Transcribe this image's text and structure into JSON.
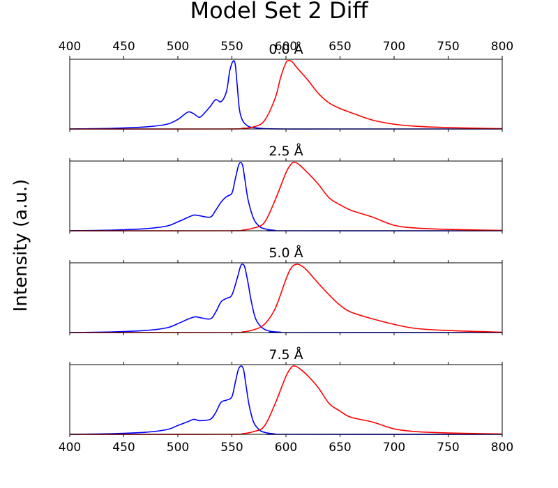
{
  "figure": {
    "title": "Model Set 2 Diff",
    "ylabel": "Intensity (a.u.)"
  },
  "chart_data": {
    "type": "line",
    "title": "Model Set 2 Diff",
    "ylabel": "Intensity (a.u.)",
    "xlabel": "",
    "xlim": [
      400,
      800
    ],
    "xticks": [
      "400",
      "450",
      "500",
      "550",
      "600",
      "650",
      "700",
      "750",
      "800"
    ],
    "colors": {
      "blue": "#0000ff",
      "red": "#ff0000"
    },
    "yticks_shown": false,
    "panels": [
      {
        "title": "0.0 Å",
        "series": [
          {
            "color": "#0000ff",
            "x": [
              400,
              440,
              470,
              490,
              500,
              505,
              510,
              515,
              520,
              525,
              530,
              535,
              540,
              545,
              548,
              551,
              553,
              555,
              557,
              560,
              565,
              570,
              580,
              600,
              650,
              800
            ],
            "y": [
              0.0,
              0.01,
              0.03,
              0.07,
              0.14,
              0.2,
              0.25,
              0.22,
              0.17,
              0.24,
              0.33,
              0.43,
              0.4,
              0.55,
              0.85,
              0.99,
              0.95,
              0.62,
              0.28,
              0.12,
              0.04,
              0.02,
              0.005,
              0.0,
              0.0,
              0.0
            ]
          },
          {
            "color": "#ff0000",
            "x": [
              400,
              540,
              560,
              570,
              580,
              590,
              595,
              600,
              603,
              606,
              610,
              620,
              630,
              640,
              650,
              660,
              680,
              700,
              720,
              750,
              800
            ],
            "y": [
              0.0,
              0.0,
              0.01,
              0.03,
              0.12,
              0.45,
              0.75,
              0.97,
              1.0,
              0.98,
              0.9,
              0.72,
              0.52,
              0.38,
              0.3,
              0.24,
              0.13,
              0.07,
              0.04,
              0.02,
              0.005
            ]
          }
        ]
      },
      {
        "title": "2.5 Å",
        "series": [
          {
            "color": "#0000ff",
            "x": [
              400,
              440,
              470,
              490,
              500,
              510,
              515,
              520,
              530,
              535,
              540,
              545,
              550,
              553,
              556,
              558,
              560,
              562,
              565,
              570,
              575,
              580,
              590,
              600,
              800
            ],
            "y": [
              0.0,
              0.01,
              0.03,
              0.07,
              0.13,
              0.2,
              0.23,
              0.22,
              0.2,
              0.3,
              0.42,
              0.5,
              0.55,
              0.75,
              0.95,
              1.0,
              0.95,
              0.75,
              0.45,
              0.18,
              0.07,
              0.03,
              0.005,
              0.0,
              0.0
            ]
          },
          {
            "color": "#ff0000",
            "x": [
              400,
              545,
              560,
              570,
              580,
              590,
              600,
              605,
              608,
              612,
              620,
              630,
              640,
              650,
              660,
              680,
              700,
              720,
              750,
              800
            ],
            "y": [
              0.0,
              0.0,
              0.01,
              0.04,
              0.12,
              0.45,
              0.85,
              0.98,
              1.0,
              0.97,
              0.85,
              0.68,
              0.48,
              0.38,
              0.3,
              0.2,
              0.08,
              0.04,
              0.02,
              0.005
            ]
          }
        ]
      },
      {
        "title": "5.0 Å",
        "series": [
          {
            "color": "#0000ff",
            "x": [
              400,
              440,
              470,
              490,
              500,
              510,
              516,
              520,
              530,
              535,
              540,
              545,
              550,
              555,
              558,
              560,
              562,
              565,
              568,
              572,
              578,
              585,
              595,
              600,
              800
            ],
            "y": [
              0.0,
              0.01,
              0.03,
              0.07,
              0.13,
              0.2,
              0.23,
              0.22,
              0.2,
              0.3,
              0.45,
              0.5,
              0.55,
              0.8,
              0.97,
              1.0,
              0.95,
              0.72,
              0.45,
              0.2,
              0.07,
              0.02,
              0.005,
              0.0,
              0.0
            ]
          },
          {
            "color": "#ff0000",
            "x": [
              400,
              545,
              560,
              570,
              580,
              590,
              600,
              605,
              610,
              615,
              620,
              630,
              640,
              650,
              660,
              680,
              700,
              720,
              750,
              800
            ],
            "y": [
              0.0,
              0.0,
              0.01,
              0.04,
              0.12,
              0.35,
              0.78,
              0.95,
              1.0,
              0.97,
              0.9,
              0.72,
              0.55,
              0.4,
              0.3,
              0.2,
              0.12,
              0.06,
              0.03,
              0.005
            ]
          }
        ]
      },
      {
        "title": "7.5 Å",
        "series": [
          {
            "color": "#0000ff",
            "x": [
              400,
              440,
              470,
              490,
              500,
              510,
              515,
              520,
              530,
              535,
              540,
              545,
              550,
              553,
              556,
              559,
              561,
              563,
              566,
              570,
              575,
              580,
              590,
              600,
              800
            ],
            "y": [
              0.0,
              0.01,
              0.03,
              0.07,
              0.13,
              0.19,
              0.22,
              0.2,
              0.22,
              0.32,
              0.47,
              0.5,
              0.55,
              0.75,
              0.95,
              1.0,
              0.93,
              0.72,
              0.42,
              0.18,
              0.07,
              0.03,
              0.005,
              0.0,
              0.0
            ]
          },
          {
            "color": "#ff0000",
            "x": [
              400,
              545,
              560,
              570,
              580,
              590,
              600,
              605,
              608,
              612,
              620,
              630,
              640,
              650,
              660,
              680,
              700,
              720,
              750,
              800
            ],
            "y": [
              0.0,
              0.0,
              0.01,
              0.04,
              0.12,
              0.45,
              0.85,
              0.98,
              1.0,
              0.97,
              0.86,
              0.68,
              0.45,
              0.34,
              0.25,
              0.18,
              0.08,
              0.04,
              0.02,
              0.005
            ]
          }
        ]
      }
    ]
  }
}
